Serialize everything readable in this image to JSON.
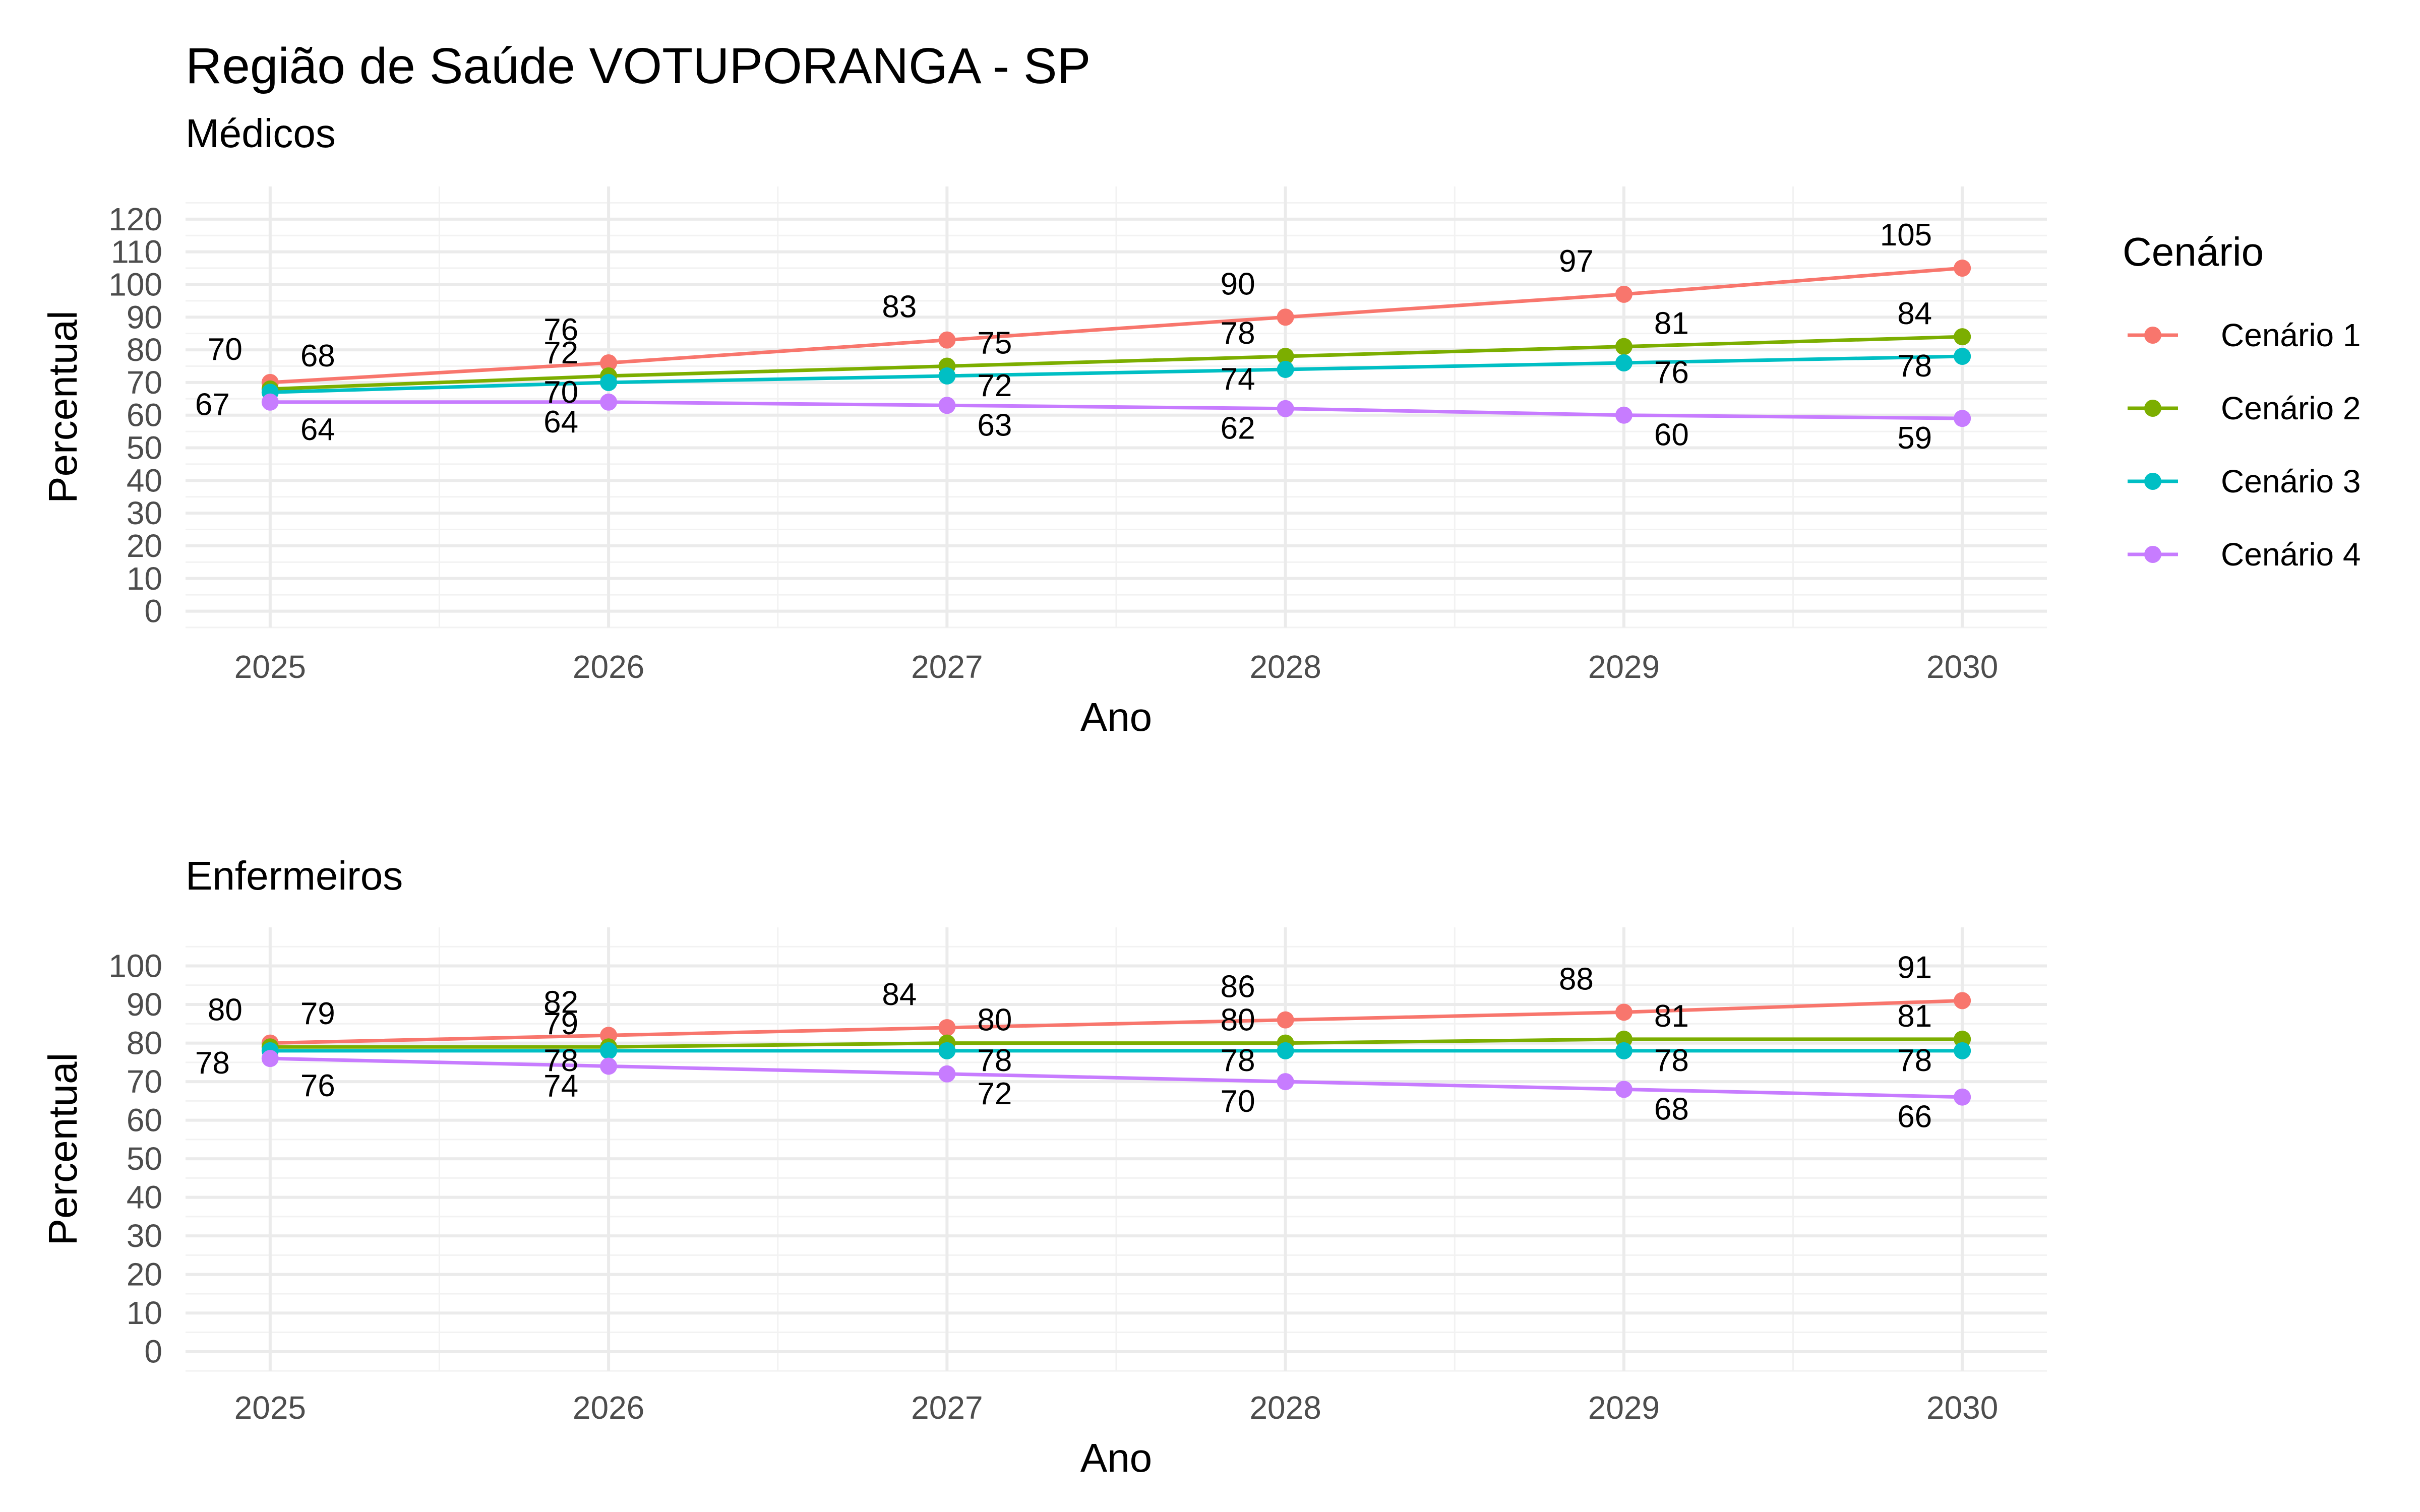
{
  "title": "Região de Saúde VOTUPORANGA - SP",
  "legend": {
    "title": "Cenário",
    "position": "right"
  },
  "chart_data": [
    {
      "type": "line",
      "subtitle": "Médicos",
      "xlabel": "Ano",
      "ylabel": "Percentual",
      "x": [
        2025,
        2026,
        2027,
        2028,
        2029,
        2030
      ],
      "ylim": [
        -5,
        130
      ],
      "yticks": [
        0,
        10,
        20,
        30,
        40,
        50,
        60,
        70,
        80,
        90,
        100,
        110,
        120
      ],
      "grid": true,
      "series": [
        {
          "name": "Cenário 1",
          "color": "#F8766D",
          "values": [
            70,
            76,
            83,
            90,
            97,
            105
          ]
        },
        {
          "name": "Cenário 2",
          "color": "#7CAE00",
          "values": [
            68,
            72,
            75,
            78,
            81,
            84
          ]
        },
        {
          "name": "Cenário 3",
          "color": "#00BFC4",
          "values": [
            67,
            70,
            72,
            74,
            76,
            78
          ]
        },
        {
          "name": "Cenário 4",
          "color": "#C77CFF",
          "values": [
            64,
            64,
            63,
            62,
            60,
            59
          ]
        }
      ]
    },
    {
      "type": "line",
      "subtitle": "Enfermeiros",
      "xlabel": "Ano",
      "ylabel": "Percentual",
      "x": [
        2025,
        2026,
        2027,
        2028,
        2029,
        2030
      ],
      "ylim": [
        -5,
        110
      ],
      "yticks": [
        0,
        10,
        20,
        30,
        40,
        50,
        60,
        70,
        80,
        90,
        100
      ],
      "grid": true,
      "series": [
        {
          "name": "Cenário 1",
          "color": "#F8766D",
          "values": [
            80,
            82,
            84,
            86,
            88,
            91
          ]
        },
        {
          "name": "Cenário 2",
          "color": "#7CAE00",
          "values": [
            79,
            79,
            80,
            80,
            81,
            81
          ]
        },
        {
          "name": "Cenário 3",
          "color": "#00BFC4",
          "values": [
            78,
            78,
            78,
            78,
            78,
            78
          ]
        },
        {
          "name": "Cenário 4",
          "color": "#C77CFF",
          "values": [
            76,
            74,
            72,
            70,
            68,
            66
          ]
        }
      ]
    }
  ]
}
